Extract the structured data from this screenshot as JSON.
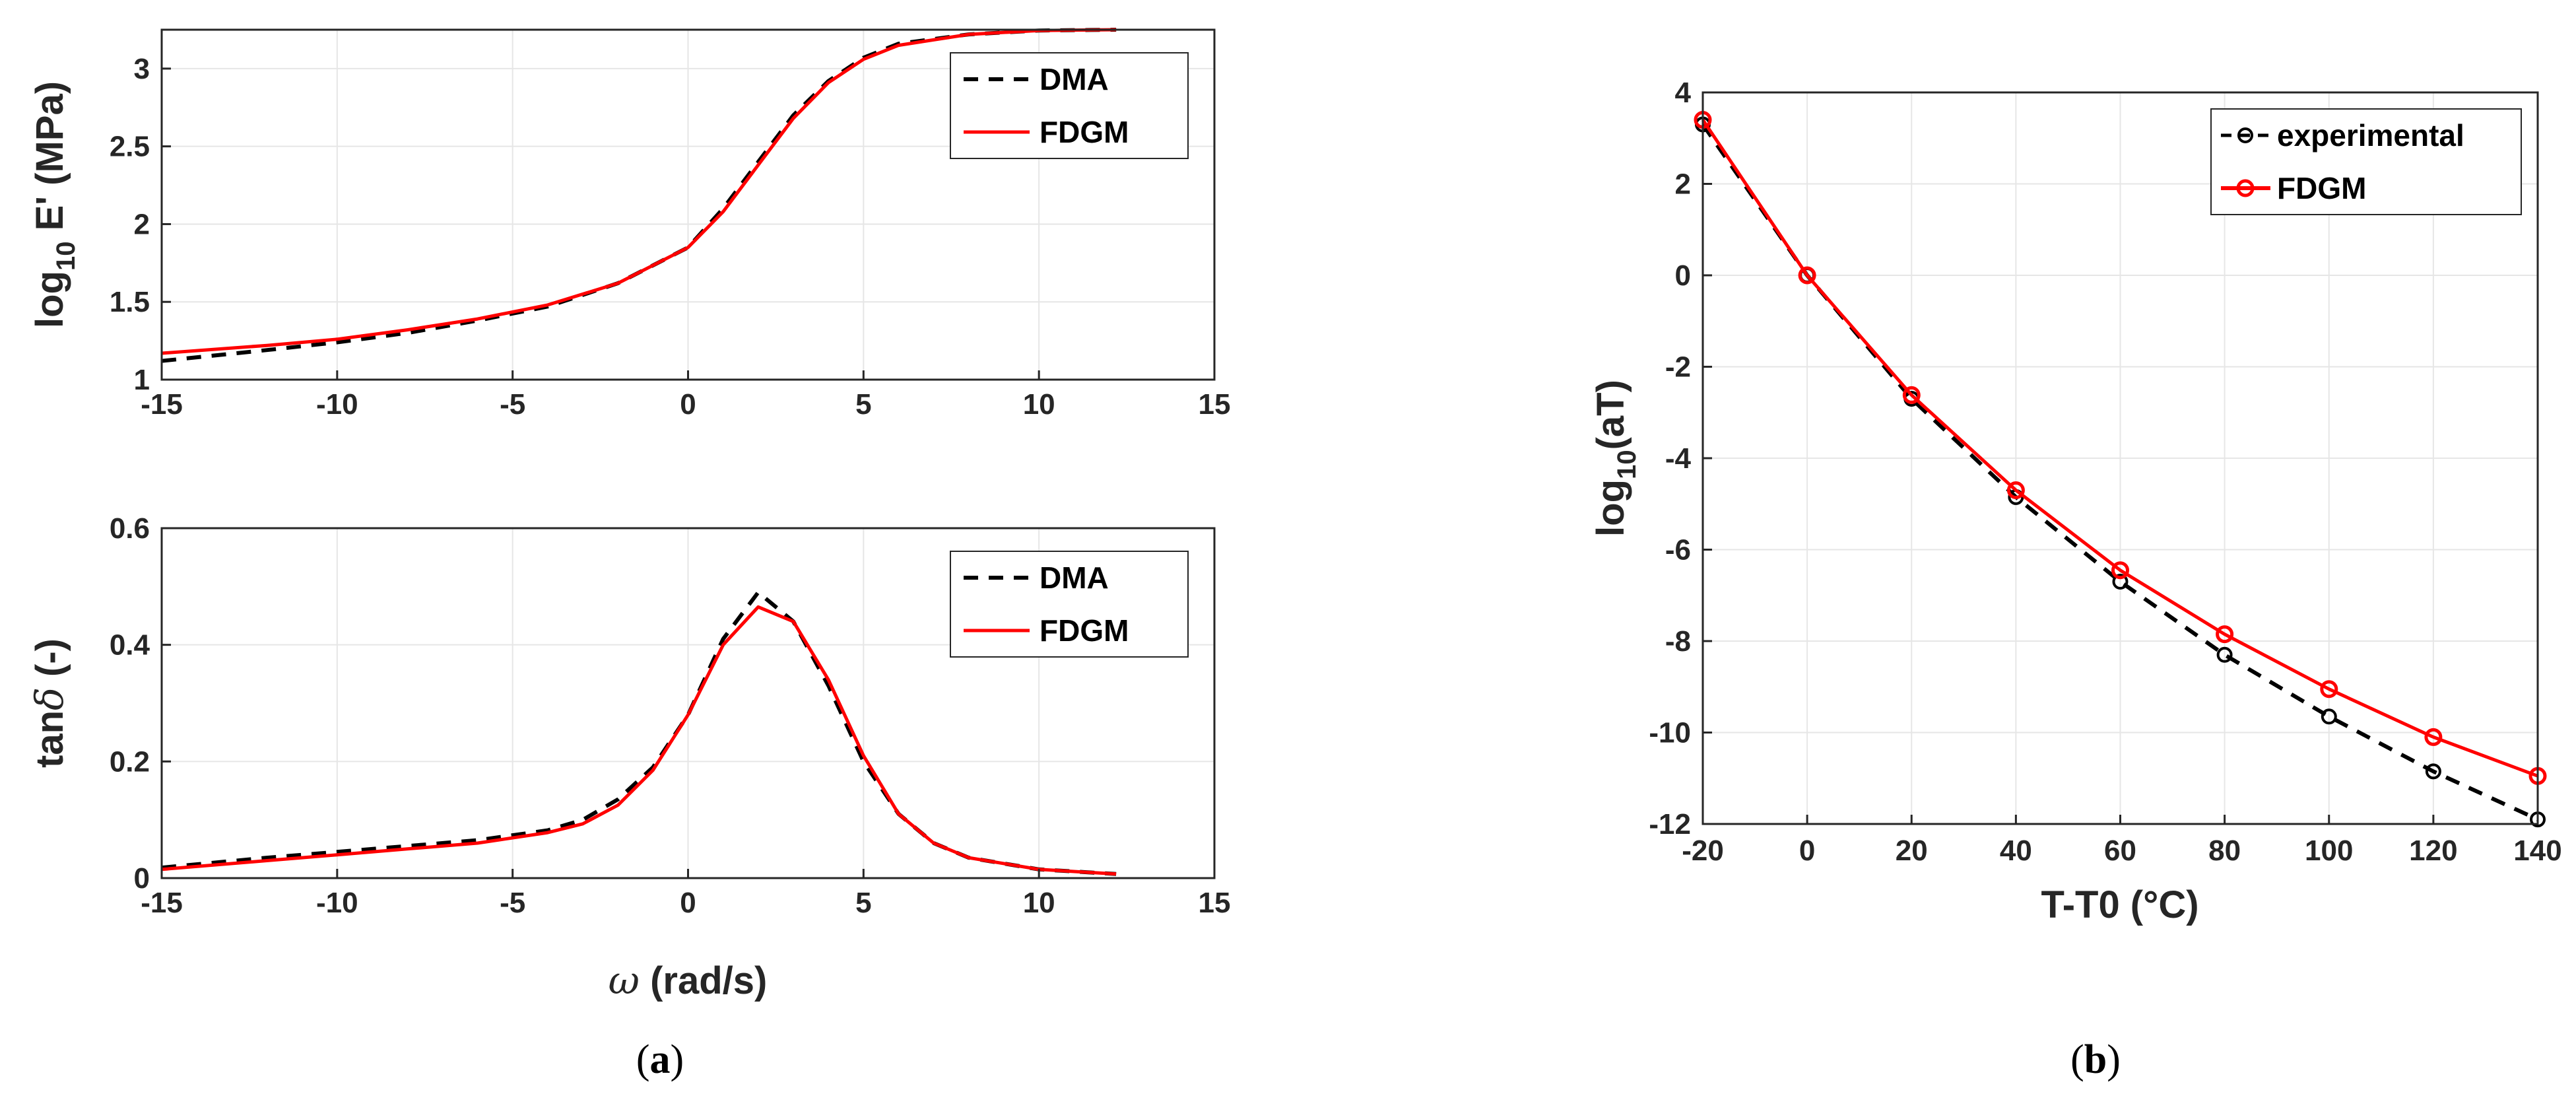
{
  "colors": {
    "dma": "#000000",
    "fdgm": "#ff0000",
    "axis": "#262626",
    "grid": "#e6e6e6"
  },
  "captions": {
    "a": "a",
    "b": "b"
  },
  "chart_data": [
    {
      "id": "storage-modulus",
      "type": "line",
      "title": "",
      "xlabel": "",
      "ylabel_main": "log",
      "ylabel_sub": "10",
      "ylabel_rest": " E' (MPa)",
      "xlim": [
        -15,
        15
      ],
      "ylim": [
        1,
        3.25
      ],
      "xticks": [
        -15,
        -10,
        -5,
        0,
        5,
        10,
        15
      ],
      "xtick_labels": [
        "-15",
        "-10",
        "-5",
        "0",
        "5",
        "10",
        "15"
      ],
      "yticks": [
        1,
        1.5,
        2,
        2.5,
        3
      ],
      "ytick_labels": [
        "1",
        "1.5",
        "2",
        "2.5",
        "3"
      ],
      "grid": true,
      "legend": "top-right",
      "series": [
        {
          "name": "DMA",
          "style": "dashed",
          "x": [
            -15,
            -12,
            -10,
            -8,
            -6,
            -4,
            -2,
            0,
            1,
            2,
            3,
            4,
            5,
            6,
            8,
            10,
            12.2
          ],
          "y": [
            1.12,
            1.19,
            1.24,
            1.3,
            1.38,
            1.47,
            1.62,
            1.85,
            2.1,
            2.4,
            2.7,
            2.92,
            3.07,
            3.16,
            3.22,
            3.245,
            3.25
          ]
        },
        {
          "name": "FDGM",
          "style": "solid",
          "x": [
            -15,
            -12,
            -10,
            -8,
            -6,
            -4,
            -2,
            0,
            1,
            2,
            3,
            4,
            5,
            6,
            8,
            10,
            12.2
          ],
          "y": [
            1.17,
            1.22,
            1.26,
            1.32,
            1.39,
            1.48,
            1.62,
            1.85,
            2.08,
            2.38,
            2.68,
            2.91,
            3.06,
            3.15,
            3.22,
            3.245,
            3.25
          ]
        }
      ]
    },
    {
      "id": "loss-tangent",
      "type": "line",
      "title": "",
      "xlabel_symbol": "ω",
      "xlabel_rest": " (rad/s)",
      "ylabel_main": "tan",
      "ylabel_symbol": "δ",
      "ylabel_rest": " (-)",
      "xlim": [
        -15,
        15
      ],
      "ylim": [
        0,
        0.6
      ],
      "xticks": [
        -15,
        -10,
        -5,
        0,
        5,
        10,
        15
      ],
      "xtick_labels": [
        "-15",
        "-10",
        "-5",
        "0",
        "5",
        "10",
        "15"
      ],
      "yticks": [
        0,
        0.2,
        0.4,
        0.6
      ],
      "ytick_labels": [
        "0",
        "0.2",
        "0.4",
        "0.6"
      ],
      "grid": true,
      "legend": "top-right",
      "series": [
        {
          "name": "DMA",
          "style": "dashed",
          "x": [
            -15,
            -12,
            -10,
            -8,
            -6,
            -4,
            -3,
            -2,
            -1,
            0,
            1,
            2,
            3,
            4,
            5,
            6,
            7,
            8,
            10,
            12.2
          ],
          "y": [
            0.018,
            0.035,
            0.045,
            0.055,
            0.065,
            0.082,
            0.1,
            0.135,
            0.19,
            0.28,
            0.41,
            0.49,
            0.44,
            0.33,
            0.2,
            0.11,
            0.06,
            0.035,
            0.015,
            0.007
          ]
        },
        {
          "name": "FDGM",
          "style": "solid",
          "x": [
            -15,
            -12,
            -10,
            -8,
            -6,
            -4,
            -3,
            -2,
            -1,
            0,
            1,
            2,
            3,
            4,
            5,
            6,
            7,
            8,
            10,
            12.2
          ],
          "y": [
            0.015,
            0.03,
            0.04,
            0.05,
            0.06,
            0.078,
            0.093,
            0.125,
            0.185,
            0.28,
            0.4,
            0.465,
            0.44,
            0.34,
            0.21,
            0.11,
            0.06,
            0.035,
            0.015,
            0.007
          ]
        }
      ]
    },
    {
      "id": "shift-factor",
      "type": "line",
      "title": "",
      "xlabel": "T-T0 (°C)",
      "ylabel_main": "log",
      "ylabel_sub": "10",
      "ylabel_rest": "(aT)",
      "xlim": [
        -20,
        140
      ],
      "ylim": [
        -12,
        4
      ],
      "xticks": [
        -20,
        0,
        20,
        40,
        60,
        80,
        100,
        120,
        140
      ],
      "xtick_labels": [
        "-20",
        "0",
        "20",
        "40",
        "60",
        "80",
        "100",
        "120",
        "140"
      ],
      "yticks": [
        -12,
        -10,
        -8,
        -6,
        -4,
        -2,
        0,
        2,
        4
      ],
      "ytick_labels": [
        "-12",
        "-10",
        "-8",
        "-6",
        "-4",
        "-2",
        "0",
        "2",
        "4"
      ],
      "grid": true,
      "legend": "top-right",
      "series": [
        {
          "name": "experimental",
          "style": "dashed-marker",
          "x": [
            -20,
            0,
            20,
            40,
            60,
            80,
            100,
            120,
            140
          ],
          "y": [
            3.3,
            0,
            -2.7,
            -4.85,
            -6.7,
            -8.3,
            -9.65,
            -10.85,
            -11.9
          ]
        },
        {
          "name": "FDGM",
          "style": "solid-marker",
          "x": [
            -20,
            0,
            20,
            40,
            60,
            80,
            100,
            120,
            140
          ],
          "y": [
            3.4,
            0,
            -2.62,
            -4.7,
            -6.45,
            -7.85,
            -9.05,
            -10.1,
            -10.95
          ]
        }
      ]
    }
  ]
}
